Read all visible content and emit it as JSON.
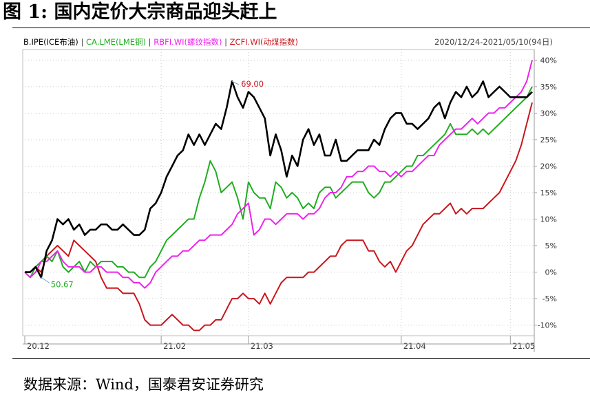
{
  "figure_title": "图 1:  国内定价大宗商品迎头赶上",
  "date_range": "2020/12/24-2021/05/10(94日)",
  "source": "数据来源：Wind，国泰君安证券研究",
  "chart_data": {
    "type": "line",
    "title": "",
    "xlabel": "",
    "ylabel": "",
    "x_ticks": [
      "20.12",
      "21.02",
      "21.03",
      "21.04",
      "21.05"
    ],
    "y_ticks": [
      "40%",
      "35%",
      "30%",
      "25%",
      "20%",
      "15%",
      "10%",
      "5%",
      "0%",
      "-5%",
      "-10%"
    ],
    "ylim": [
      -12,
      42
    ],
    "legend_position": "top-left",
    "grid": "horizontal dotted",
    "series": [
      {
        "name": "B.IPE(ICE布油)",
        "color": "#000000",
        "values": [
          0,
          0,
          1,
          -1,
          4,
          6,
          10,
          9,
          10,
          8,
          9,
          7,
          8,
          8,
          9,
          9,
          8,
          8,
          9,
          8,
          7,
          7,
          8,
          12,
          13,
          15,
          18,
          20,
          22,
          23,
          26,
          24,
          26,
          24,
          26,
          28,
          27,
          31,
          36,
          33,
          31,
          34,
          33,
          31,
          29,
          22,
          26,
          23,
          18,
          22,
          20,
          25,
          27,
          24,
          26,
          22,
          22,
          25,
          21,
          21,
          22,
          23,
          23,
          23,
          25,
          24,
          27,
          29,
          30,
          30,
          28,
          28,
          27,
          28,
          29,
          31,
          32,
          29,
          32,
          34,
          33,
          35,
          33,
          34,
          36,
          33,
          34,
          35,
          34,
          33,
          33,
          33,
          33,
          34
        ]
      },
      {
        "name": "CA.LME(LME铜)",
        "color": "#1fad1f",
        "values": [
          0,
          -1,
          1,
          2,
          3,
          2,
          4,
          1,
          0,
          1,
          2,
          0,
          2,
          1,
          2,
          2,
          2,
          1,
          1,
          0,
          0,
          -1,
          -1,
          1,
          2,
          4,
          6,
          7,
          8,
          9,
          10,
          10,
          14,
          17,
          21,
          19,
          15,
          16,
          17,
          14,
          10,
          17,
          15,
          14,
          14,
          12,
          17,
          16,
          14,
          15,
          14,
          12,
          13,
          12,
          15,
          16,
          16,
          14,
          15,
          16,
          17,
          17,
          17,
          15,
          14,
          15,
          17,
          17,
          18,
          19,
          20,
          20,
          22,
          22,
          23,
          24,
          25,
          26,
          28,
          26,
          26,
          26,
          27,
          26,
          27,
          26,
          27,
          28,
          29,
          30,
          31,
          32,
          33,
          35
        ]
      },
      {
        "name": "RBFI.WI(螺纹指数)",
        "color": "#ee22ee",
        "values": [
          0,
          -1,
          0,
          2,
          2,
          3,
          4,
          2,
          1,
          1,
          1,
          0,
          0,
          1,
          1,
          0,
          0,
          0,
          -1,
          -1,
          -2,
          -2,
          -3,
          -2,
          0,
          1,
          2,
          3,
          3,
          4,
          4,
          5,
          6,
          6,
          7,
          7,
          7,
          8,
          9,
          11,
          12,
          13,
          7,
          8,
          10,
          10,
          9,
          10,
          11,
          11,
          11,
          10,
          11,
          11,
          12,
          14,
          15,
          15,
          16,
          18,
          18,
          19,
          19,
          20,
          20,
          19,
          19,
          18,
          19,
          18,
          19,
          19,
          20,
          21,
          22,
          22,
          24,
          25,
          26,
          27,
          27,
          28,
          29,
          28,
          29,
          30,
          30,
          31,
          31,
          32,
          33,
          34,
          36,
          40
        ]
      },
      {
        "name": "ZCFI.WI(动煤指数)",
        "color": "#c8161c",
        "values": [
          0,
          0,
          1,
          0,
          3,
          4,
          5,
          4,
          3,
          6,
          5,
          4,
          3,
          2,
          -1,
          -3,
          -3,
          -3,
          -4,
          -4,
          -4,
          -6,
          -9,
          -10,
          -10,
          -10,
          -9,
          -8,
          -9,
          -10,
          -10,
          -11,
          -11,
          -10,
          -10,
          -9,
          -9,
          -7,
          -5,
          -5,
          -4,
          -5,
          -5,
          -6,
          -4,
          -6,
          -4,
          -2,
          -1,
          -1,
          -1,
          -1,
          0,
          0,
          1,
          2,
          3,
          3,
          5,
          6,
          6,
          6,
          6,
          4,
          4,
          2,
          1,
          2,
          0,
          2,
          4,
          5,
          7,
          9,
          10,
          11,
          11,
          12,
          13,
          11,
          12,
          11,
          12,
          12,
          12,
          13,
          14,
          15,
          17,
          19,
          21,
          24,
          28,
          32
        ]
      }
    ],
    "annotations": [
      {
        "text": "69.00",
        "series": "B.IPE(ICE布油)",
        "x_index": 38,
        "color": "#c8161c"
      },
      {
        "text": "50.67",
        "series": "B.IPE(ICE布油)",
        "x_index": 3,
        "color": "#1fad1f"
      }
    ]
  }
}
